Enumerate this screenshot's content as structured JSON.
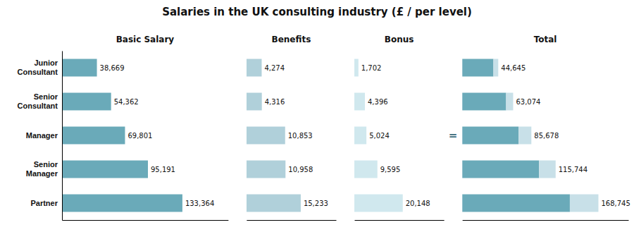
{
  "chart_data": [
    {
      "type": "bar",
      "orientation": "horizontal",
      "title": "Salaries in the UK consulting industry (£ / per level)",
      "subtitle": "Basic Salary",
      "categories": [
        "Junior\nConsultant",
        "Senior\nConsultant",
        "Manager",
        "Senior\nManager",
        "Partner"
      ],
      "values": [
        38669,
        54362,
        69801,
        95191,
        133364
      ],
      "value_labels": [
        "38,669",
        "54,362",
        "69,801",
        "95,191",
        "133,364"
      ],
      "color": "#6aaab9",
      "data_labels": true,
      "xlim": [
        0,
        184042.32
      ],
      "xticks": [],
      "tick_labels": "y"
    },
    {
      "type": "bar",
      "orientation": "horizontal",
      "subtitle": "Benefits",
      "values": [
        4274,
        4316,
        10853,
        10958,
        15233
      ],
      "value_labels": [
        "4,274",
        "4,316",
        "10,853",
        "10,958",
        "15,233"
      ],
      "color": "#b0d0da",
      "data_labels": true,
      "xlim": [
        0,
        25134.45
      ],
      "xticks": [],
      "tick_labels": false
    },
    {
      "type": "bar",
      "orientation": "horizontal",
      "subtitle": "Bonus",
      "values": [
        1702,
        4396,
        5024,
        9595,
        20148
      ],
      "value_labels": [
        "1,702",
        "4,396",
        "5,024",
        "9,595",
        "20,148"
      ],
      "color": "#d0e8ee",
      "data_labels": true,
      "xlim": [
        0,
        37273.8
      ],
      "xticks": [],
      "tick_labels": false
    },
    {
      "type": "bar",
      "orientation": "horizontal",
      "stacked": true,
      "subtitle": "Total",
      "series": [
        {
          "color": "#6aaab9",
          "values": [
            38669,
            54362,
            69801,
            95191,
            133364
          ]
        },
        {
          "color": "#c8e0e8",
          "values": [
            5976,
            8712,
            15877,
            20553,
            35381
          ]
        }
      ],
      "totals": [
        44645,
        63074,
        85678,
        115744,
        168745
      ],
      "total_labels": [
        "44,645",
        "63,074",
        "85,678",
        "115,744",
        "168,745"
      ],
      "data_labels": true,
      "xlim": [
        0,
        205868.9
      ],
      "xticks": [],
      "tick_labels": false,
      "annotations": [
        "="
      ]
    }
  ]
}
